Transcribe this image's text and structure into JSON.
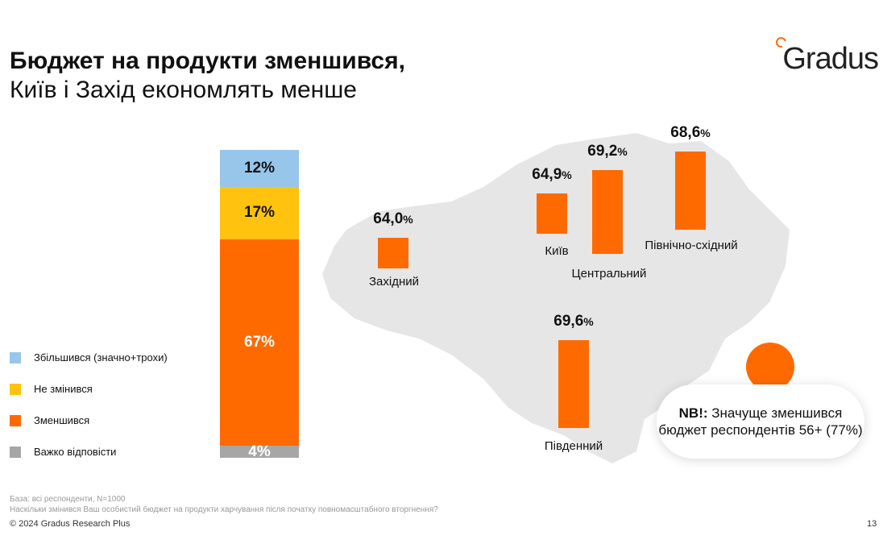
{
  "title": {
    "line1": "Бюджет на продукти зменшився,",
    "line2": "Київ і Захід економлять менше"
  },
  "logo": "Gradus",
  "colors": {
    "increased": "#98c6ea",
    "unchanged": "#ffc20e",
    "decreased": "#ff6a00",
    "hard": "#a6a6a6",
    "map": "#e6e6e6"
  },
  "chart_data": [
    {
      "type": "bar",
      "stacked": true,
      "series": [
        {
          "name": "Збільшився (значно+трохи)",
          "value": 12,
          "label": "12%"
        },
        {
          "name": "Не змінився",
          "value": 17,
          "label": "17%"
        },
        {
          "name": "Зменшився",
          "value": 67,
          "label": "67%"
        },
        {
          "name": "Важко відповісти",
          "value": 4,
          "label": "4%"
        }
      ],
      "legend": "left"
    },
    {
      "type": "bar",
      "unit": "%",
      "categories": [
        "Західний",
        "Київ",
        "Центральний",
        "Північно-східний",
        "Південний"
      ],
      "values": [
        64.0,
        64.9,
        69.2,
        68.6,
        69.6
      ],
      "labels": [
        "64,0",
        "64,9",
        "69,2",
        "68,6",
        "69,6"
      ]
    }
  ],
  "nb": {
    "bold": "NB!:",
    "text": " Значуще зменшився бюджет респондентів 56+ (77%)"
  },
  "footer": {
    "base": "База: всі респонденти, N=1000",
    "question": "Наскільки змінився Ваш особистий бюджет на продукти харчування після початку повномасштабного вторгнення?",
    "copyright": "© 2024 Gradus Research Plus",
    "page": "13"
  }
}
